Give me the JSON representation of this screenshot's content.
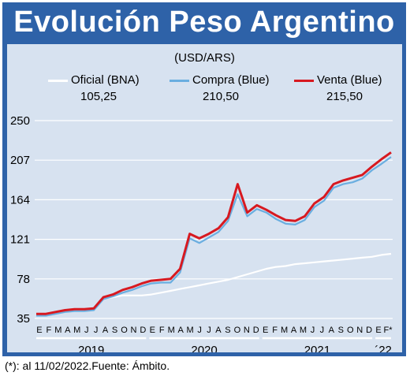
{
  "title": "Evolución Peso Argentino",
  "unit": "(USD/ARS)",
  "footnote": "(*): al 11/02/2022.Fuente: Ámbito.",
  "legend": [
    {
      "name": "Oficial (BNA)",
      "value": "105,25",
      "color": "#ffffff"
    },
    {
      "name": "Compra (Blue)",
      "value": "210,50",
      "color": "#6aaee0"
    },
    {
      "name": "Venta (Blue)",
      "value": "215,50",
      "color": "#d71920"
    }
  ],
  "chart_data": {
    "type": "line",
    "title": "Evolución Peso Argentino",
    "ylabel": "(USD/ARS)",
    "ylim": [
      35,
      250
    ],
    "yticks": [
      35,
      78,
      121,
      164,
      207,
      250
    ],
    "grid": true,
    "legend_position": "top",
    "month_labels": [
      "E",
      "F",
      "M",
      "A",
      "M",
      "J",
      "J",
      "A",
      "S",
      "O",
      "N",
      "D",
      "E",
      "F",
      "M",
      "A",
      "M",
      "J",
      "J",
      "A",
      "S",
      "O",
      "N",
      "D",
      "E",
      "F",
      "M",
      "A",
      "M",
      "J",
      "J",
      "A",
      "S",
      "O",
      "N",
      "D",
      "E",
      "F*"
    ],
    "year_labels": [
      "2019",
      "2020",
      "2021",
      "´22"
    ],
    "x": [
      "2019-01",
      "2019-02",
      "2019-03",
      "2019-04",
      "2019-05",
      "2019-06",
      "2019-07",
      "2019-08",
      "2019-09",
      "2019-10",
      "2019-11",
      "2019-12",
      "2020-01",
      "2020-02",
      "2020-03",
      "2020-04",
      "2020-05",
      "2020-06",
      "2020-07",
      "2020-08",
      "2020-09",
      "2020-10",
      "2020-11",
      "2020-12",
      "2021-01",
      "2021-02",
      "2021-03",
      "2021-04",
      "2021-05",
      "2021-06",
      "2021-07",
      "2021-08",
      "2021-09",
      "2021-10",
      "2021-11",
      "2021-12",
      "2022-01",
      "2022-02"
    ],
    "series": [
      {
        "name": "Oficial (BNA)",
        "color": "#ffffff",
        "values": [
          38,
          39,
          41,
          43,
          45,
          44,
          44,
          57,
          58,
          60,
          60,
          60,
          61,
          63,
          65,
          67,
          69,
          71,
          73,
          75,
          77,
          80,
          83,
          86,
          89,
          91,
          92,
          94,
          95,
          96,
          97,
          98,
          99,
          100,
          101,
          102,
          104,
          105.25
        ]
      },
      {
        "name": "Compra (Blue)",
        "color": "#6aaee0",
        "values": [
          38,
          38,
          40,
          42,
          43,
          43,
          44,
          56,
          59,
          63,
          66,
          70,
          73,
          74,
          74,
          85,
          122,
          117,
          123,
          129,
          141,
          170,
          146,
          154,
          150,
          143,
          138,
          137,
          142,
          156,
          163,
          177,
          181,
          183,
          187,
          196,
          203,
          210.5
        ]
      },
      {
        "name": "Venta (Blue)",
        "color": "#d71920",
        "values": [
          40,
          40,
          42,
          44,
          45,
          45,
          46,
          58,
          61,
          66,
          69,
          73,
          76,
          77,
          78,
          89,
          127,
          122,
          127,
          133,
          145,
          181,
          150,
          158,
          153,
          147,
          142,
          141,
          146,
          160,
          167,
          181,
          185,
          188,
          191,
          200,
          208,
          215.5
        ]
      }
    ]
  }
}
